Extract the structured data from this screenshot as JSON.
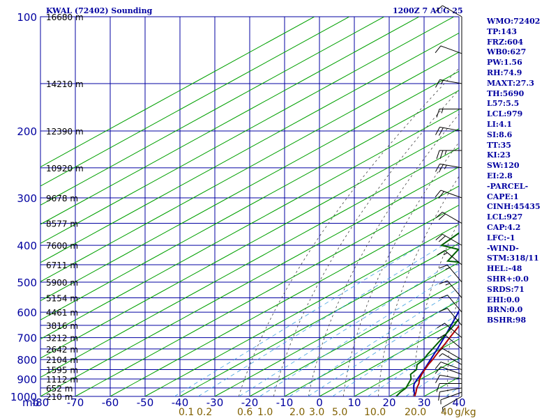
{
  "header": {
    "station": "KWAL (72402) Sounding",
    "time": "1200Z  7 AUG 25"
  },
  "indices": [
    "WMO:72402",
    "TP:143",
    "FRZ:604",
    "WB0:627",
    "PW:1.56",
    "RH:74.9",
    "MAXT:27.3",
    "TH:5690",
    "L57:5.5",
    "LCL:979",
    "LI:4.1",
    "SI:8.6",
    "TT:35",
    "KI:23",
    "SW:120",
    "EI:2.8",
    "-PARCEL-",
    "CAPE:1",
    "CINH:45435",
    "LCL:927",
    "CAP:4.2",
    "LFC:-1",
    "-WIND-",
    "STM:318/11",
    "HEL:-48",
    "SHR+:0.0",
    "SRDS:71",
    "EHI:0.0",
    "BRN:0.0",
    "BSHR:98"
  ],
  "colors": {
    "axis_text": "#0000a0",
    "grid": "#0000a0",
    "dry_adiabat": "#00a000",
    "moist_adiabat": "#404040",
    "mixing_ratio": "#3fa0e0",
    "temperature": "#b00000",
    "dewpoint": "#006000",
    "parcel": "#0000b0",
    "mixing_ratio_labels": "#806000",
    "wind_barbs": "#000000"
  },
  "chart_data": {
    "type": "skew-t log-p sounding",
    "title": "KWAL (72402) Sounding 1200Z 7 AUG 25",
    "x_unit": "°C (skewed)",
    "y_unit": "mb",
    "ylim": [
      1000,
      100
    ],
    "xlim_bottom": [
      -80,
      40
    ],
    "x_ticks": [
      -80,
      -70,
      -60,
      -50,
      -40,
      -30,
      -20,
      -10,
      0,
      10,
      20,
      30,
      40
    ],
    "x_tick_labels": [
      "-80",
      "-70",
      "-60",
      "-50",
      "-40",
      "-30",
      "-20",
      "-10",
      "0",
      "10",
      "20",
      "30",
      "40"
    ],
    "pressure_labels": [
      {
        "p": 100,
        "label": "100"
      },
      {
        "p": 200,
        "label": "200"
      },
      {
        "p": 300,
        "label": "300"
      },
      {
        "p": 400,
        "label": "400"
      },
      {
        "p": 500,
        "label": "500"
      },
      {
        "p": 600,
        "label": "600"
      },
      {
        "p": 700,
        "label": "700"
      },
      {
        "p": 800,
        "label": "800"
      },
      {
        "p": 900,
        "label": "900"
      },
      {
        "p": 1000,
        "label": "1000"
      }
    ],
    "height_labels": [
      {
        "p": 100,
        "label": "16680 m"
      },
      {
        "p": 150,
        "label": "14210 m"
      },
      {
        "p": 200,
        "label": "12390 m"
      },
      {
        "p": 250,
        "label": "10920 m"
      },
      {
        "p": 300,
        "label": "9678 m"
      },
      {
        "p": 350,
        "label": "8577 m"
      },
      {
        "p": 400,
        "label": "7600 m"
      },
      {
        "p": 450,
        "label": "6711 m"
      },
      {
        "p": 500,
        "label": "5900 m"
      },
      {
        "p": 550,
        "label": "5154 m"
      },
      {
        "p": 600,
        "label": "4461 m"
      },
      {
        "p": 650,
        "label": "3816 m"
      },
      {
        "p": 700,
        "label": "3212 m"
      },
      {
        "p": 750,
        "label": "2642 m"
      },
      {
        "p": 800,
        "label": "2104 m"
      },
      {
        "p": 850,
        "label": "1595 m"
      },
      {
        "p": 900,
        "label": "1112 m"
      },
      {
        "p": 950,
        "label": "652 m"
      },
      {
        "p": 1000,
        "label": "210 m"
      }
    ],
    "corner_label": "mb",
    "mixing_ratio_labels": [
      "0.1",
      "0.2",
      "0.6",
      "1.0",
      "2.0",
      "3.0",
      "5.0",
      "10.0",
      "20.0",
      "40",
      "g/kg"
    ],
    "mixing_ratio_values": [
      0.1,
      0.2,
      0.6,
      1.0,
      2.0,
      3.0,
      5.0,
      10.0,
      20.0,
      40
    ],
    "temperature_profile": [
      {
        "p": 1000,
        "t": 27.3
      },
      {
        "p": 975,
        "t": 25.5
      },
      {
        "p": 950,
        "t": 23.5
      },
      {
        "p": 925,
        "t": 21.8
      },
      {
        "p": 900,
        "t": 19.6
      },
      {
        "p": 875,
        "t": 17.8
      },
      {
        "p": 850,
        "t": 16.2
      },
      {
        "p": 825,
        "t": 14.6
      },
      {
        "p": 800,
        "t": 13.2
      },
      {
        "p": 775,
        "t": 11.6
      },
      {
        "p": 750,
        "t": 10.0
      },
      {
        "p": 725,
        "t": 8.4
      },
      {
        "p": 700,
        "t": 6.6
      },
      {
        "p": 650,
        "t": 3.0
      },
      {
        "p": 600,
        "t": -0.8
      },
      {
        "p": 575,
        "t": -2.8
      },
      {
        "p": 550,
        "t": -4.8
      },
      {
        "p": 500,
        "t": -9.3
      },
      {
        "p": 450,
        "t": -14.6
      },
      {
        "p": 400,
        "t": -20.5
      },
      {
        "p": 350,
        "t": -27.8
      },
      {
        "p": 300,
        "t": -35.8
      },
      {
        "p": 250,
        "t": -45.5
      },
      {
        "p": 200,
        "t": -56.5
      },
      {
        "p": 175,
        "t": -62.5
      },
      {
        "p": 150,
        "t": -68.5
      },
      {
        "p": 143,
        "t": -71.0
      },
      {
        "p": 130,
        "t": -68.8
      },
      {
        "p": 115,
        "t": -67.5
      },
      {
        "p": 100,
        "t": -66.5
      }
    ],
    "dewpoint_profile": [
      {
        "p": 1000,
        "t": 22.0
      },
      {
        "p": 975,
        "t": 21.0
      },
      {
        "p": 950,
        "t": 20.4
      },
      {
        "p": 925,
        "t": 18.8
      },
      {
        "p": 900,
        "t": 17.2
      },
      {
        "p": 875,
        "t": 14.6
      },
      {
        "p": 850,
        "t": 13.8
      },
      {
        "p": 825,
        "t": 11.4
      },
      {
        "p": 800,
        "t": 10.6
      },
      {
        "p": 775,
        "t": 9.0
      },
      {
        "p": 750,
        "t": 7.6
      },
      {
        "p": 700,
        "t": 4.6
      },
      {
        "p": 650,
        "t": 1.4
      },
      {
        "p": 600,
        "t": -2.6
      },
      {
        "p": 550,
        "t": -6.8
      },
      {
        "p": 500,
        "t": -12.0
      },
      {
        "p": 470,
        "t": -15.5
      },
      {
        "p": 450,
        "t": -21.0
      },
      {
        "p": 440,
        "t": -34.0
      },
      {
        "p": 420,
        "t": -36.0
      },
      {
        "p": 410,
        "t": -37.0
      },
      {
        "p": 400,
        "t": -44.0
      },
      {
        "p": 370,
        "t": -45.5
      },
      {
        "p": 350,
        "t": -44.0
      },
      {
        "p": 320,
        "t": -42.5
      },
      {
        "p": 300,
        "t": -50.0
      },
      {
        "p": 280,
        "t": -52.0
      },
      {
        "p": 250,
        "t": -57.5
      },
      {
        "p": 230,
        "t": -62.5
      },
      {
        "p": 200,
        "t": -70.0
      },
      {
        "p": 170,
        "t": -79.0
      },
      {
        "p": 140,
        "t": -85.0
      },
      {
        "p": 120,
        "t": -90.0
      },
      {
        "p": 110,
        "t": -93.0
      }
    ],
    "parcel_profile": [
      {
        "p": 1000,
        "t": 27.3
      },
      {
        "p": 950,
        "t": 22.6
      },
      {
        "p": 927,
        "t": 20.6
      },
      {
        "p": 900,
        "t": 19.0
      },
      {
        "p": 850,
        "t": 16.0
      },
      {
        "p": 800,
        "t": 12.6
      },
      {
        "p": 750,
        "t": 9.0
      },
      {
        "p": 700,
        "t": 5.0
      },
      {
        "p": 650,
        "t": 0.6
      },
      {
        "p": 600,
        "t": -4.2
      },
      {
        "p": 550,
        "t": -9.4
      },
      {
        "p": 500,
        "t": -15.2
      },
      {
        "p": 450,
        "t": -21.6
      },
      {
        "p": 400,
        "t": -29.0
      },
      {
        "p": 350,
        "t": -37.6
      },
      {
        "p": 300,
        "t": -47.6
      },
      {
        "p": 250,
        "t": -59.4
      },
      {
        "p": 200,
        "t": -73.6
      },
      {
        "p": 150,
        "t": -91.5
      }
    ],
    "wind_barbs": [
      {
        "p": 1000,
        "dir": 240,
        "spd": 5
      },
      {
        "p": 975,
        "dir": 250,
        "spd": 5
      },
      {
        "p": 950,
        "dir": 260,
        "spd": 10
      },
      {
        "p": 925,
        "dir": 270,
        "spd": 10
      },
      {
        "p": 900,
        "dir": 280,
        "spd": 10
      },
      {
        "p": 875,
        "dir": 290,
        "spd": 10
      },
      {
        "p": 850,
        "dir": 290,
        "spd": 10
      },
      {
        "p": 825,
        "dir": 300,
        "spd": 5
      },
      {
        "p": 800,
        "dir": 300,
        "spd": 5
      },
      {
        "p": 750,
        "dir": 310,
        "spd": 10
      },
      {
        "p": 700,
        "dir": 310,
        "spd": 10
      },
      {
        "p": 650,
        "dir": 320,
        "spd": 10
      },
      {
        "p": 600,
        "dir": 320,
        "spd": 10
      },
      {
        "p": 550,
        "dir": 320,
        "spd": 15
      },
      {
        "p": 500,
        "dir": 320,
        "spd": 15
      },
      {
        "p": 450,
        "dir": 310,
        "spd": 15
      },
      {
        "p": 400,
        "dir": 300,
        "spd": 20
      },
      {
        "p": 350,
        "dir": 300,
        "spd": 20
      },
      {
        "p": 300,
        "dir": 290,
        "spd": 20
      },
      {
        "p": 250,
        "dir": 280,
        "spd": 25
      },
      {
        "p": 225,
        "dir": 270,
        "spd": 25
      },
      {
        "p": 200,
        "dir": 280,
        "spd": 20
      },
      {
        "p": 175,
        "dir": 270,
        "spd": 15
      },
      {
        "p": 150,
        "dir": 280,
        "spd": 15
      },
      {
        "p": 125,
        "dir": 290,
        "spd": 10
      },
      {
        "p": 100,
        "dir": 300,
        "spd": 10
      }
    ]
  }
}
